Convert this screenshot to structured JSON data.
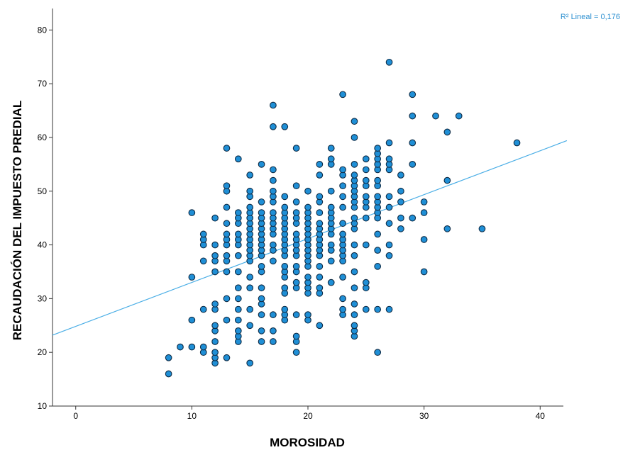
{
  "chart_data": {
    "type": "scatter",
    "title": "",
    "xlabel": "MOROSIDAD",
    "ylabel": "RECAUDACIÓN DEL IMPUESTO PREDIAL",
    "xlim": [
      -2,
      42
    ],
    "ylim": [
      10,
      84
    ],
    "xticks": [
      0,
      10,
      20,
      30,
      40
    ],
    "yticks": [
      10,
      20,
      30,
      40,
      50,
      60,
      70,
      80
    ],
    "grid": false,
    "colors": {
      "point_fill": "#1f8fd6",
      "point_edge": "#0d2a44",
      "fit_line": "#4aaee6",
      "axis": "#333333"
    },
    "fit_line": {
      "label": "R² Lineal = 0,176",
      "x": [
        -2,
        42.3
      ],
      "y": [
        23.2,
        59.4
      ]
    },
    "series": [
      {
        "points": [
          [
            8,
            16
          ],
          [
            8,
            19
          ],
          [
            9,
            21
          ],
          [
            10,
            21
          ],
          [
            10,
            26
          ],
          [
            10,
            34
          ],
          [
            10,
            46
          ],
          [
            11,
            20
          ],
          [
            11,
            21
          ],
          [
            11,
            28
          ],
          [
            11,
            37
          ],
          [
            11,
            40
          ],
          [
            11,
            41
          ],
          [
            11,
            42
          ],
          [
            12,
            18
          ],
          [
            12,
            19
          ],
          [
            12,
            20
          ],
          [
            12,
            22
          ],
          [
            12,
            24
          ],
          [
            12,
            25
          ],
          [
            12,
            28
          ],
          [
            12,
            29
          ],
          [
            12,
            35
          ],
          [
            12,
            37
          ],
          [
            12,
            38
          ],
          [
            12,
            40
          ],
          [
            12,
            45
          ],
          [
            13,
            19
          ],
          [
            13,
            26
          ],
          [
            13,
            30
          ],
          [
            13,
            35
          ],
          [
            13,
            37
          ],
          [
            13,
            38
          ],
          [
            13,
            40
          ],
          [
            13,
            41
          ],
          [
            13,
            42
          ],
          [
            13,
            44
          ],
          [
            13,
            47
          ],
          [
            13,
            50
          ],
          [
            13,
            51
          ],
          [
            13,
            58
          ],
          [
            14,
            22
          ],
          [
            14,
            23
          ],
          [
            14,
            24
          ],
          [
            14,
            26
          ],
          [
            14,
            28
          ],
          [
            14,
            30
          ],
          [
            14,
            32
          ],
          [
            14,
            35
          ],
          [
            14,
            38
          ],
          [
            14,
            40
          ],
          [
            14,
            41
          ],
          [
            14,
            42
          ],
          [
            14,
            44
          ],
          [
            14,
            45
          ],
          [
            14,
            46
          ],
          [
            14,
            56
          ],
          [
            15,
            18
          ],
          [
            15,
            25
          ],
          [
            15,
            28
          ],
          [
            15,
            32
          ],
          [
            15,
            34
          ],
          [
            15,
            37
          ],
          [
            15,
            38
          ],
          [
            15,
            39
          ],
          [
            15,
            40
          ],
          [
            15,
            41
          ],
          [
            15,
            42
          ],
          [
            15,
            43
          ],
          [
            15,
            44
          ],
          [
            15,
            45
          ],
          [
            15,
            46
          ],
          [
            15,
            47
          ],
          [
            15,
            49
          ],
          [
            15,
            50
          ],
          [
            15,
            53
          ],
          [
            16,
            22
          ],
          [
            16,
            24
          ],
          [
            16,
            27
          ],
          [
            16,
            29
          ],
          [
            16,
            30
          ],
          [
            16,
            32
          ],
          [
            16,
            35
          ],
          [
            16,
            36
          ],
          [
            16,
            38
          ],
          [
            16,
            39
          ],
          [
            16,
            40
          ],
          [
            16,
            41
          ],
          [
            16,
            42
          ],
          [
            16,
            43
          ],
          [
            16,
            44
          ],
          [
            16,
            45
          ],
          [
            16,
            46
          ],
          [
            16,
            48
          ],
          [
            16,
            55
          ],
          [
            17,
            22
          ],
          [
            17,
            24
          ],
          [
            17,
            27
          ],
          [
            17,
            37
          ],
          [
            17,
            39
          ],
          [
            17,
            40
          ],
          [
            17,
            42
          ],
          [
            17,
            43
          ],
          [
            17,
            44
          ],
          [
            17,
            45
          ],
          [
            17,
            46
          ],
          [
            17,
            48
          ],
          [
            17,
            49
          ],
          [
            17,
            50
          ],
          [
            17,
            52
          ],
          [
            17,
            54
          ],
          [
            17,
            62
          ],
          [
            17,
            66
          ],
          [
            18,
            26
          ],
          [
            18,
            27
          ],
          [
            18,
            28
          ],
          [
            18,
            31
          ],
          [
            18,
            32
          ],
          [
            18,
            34
          ],
          [
            18,
            35
          ],
          [
            18,
            36
          ],
          [
            18,
            38
          ],
          [
            18,
            39
          ],
          [
            18,
            40
          ],
          [
            18,
            41
          ],
          [
            18,
            42
          ],
          [
            18,
            43
          ],
          [
            18,
            44
          ],
          [
            18,
            45
          ],
          [
            18,
            46
          ],
          [
            18,
            47
          ],
          [
            18,
            49
          ],
          [
            18,
            62
          ],
          [
            19,
            20
          ],
          [
            19,
            22
          ],
          [
            19,
            23
          ],
          [
            19,
            27
          ],
          [
            19,
            32
          ],
          [
            19,
            33
          ],
          [
            19,
            35
          ],
          [
            19,
            36
          ],
          [
            19,
            38
          ],
          [
            19,
            39
          ],
          [
            19,
            40
          ],
          [
            19,
            41
          ],
          [
            19,
            42
          ],
          [
            19,
            44
          ],
          [
            19,
            45
          ],
          [
            19,
            46
          ],
          [
            19,
            48
          ],
          [
            19,
            51
          ],
          [
            19,
            58
          ],
          [
            20,
            26
          ],
          [
            20,
            27
          ],
          [
            20,
            31
          ],
          [
            20,
            32
          ],
          [
            20,
            33
          ],
          [
            20,
            34
          ],
          [
            20,
            36
          ],
          [
            20,
            37
          ],
          [
            20,
            38
          ],
          [
            20,
            39
          ],
          [
            20,
            40
          ],
          [
            20,
            41
          ],
          [
            20,
            42
          ],
          [
            20,
            43
          ],
          [
            20,
            44
          ],
          [
            20,
            45
          ],
          [
            20,
            46
          ],
          [
            20,
            47
          ],
          [
            20,
            50
          ],
          [
            21,
            25
          ],
          [
            21,
            31
          ],
          [
            21,
            32
          ],
          [
            21,
            34
          ],
          [
            21,
            36
          ],
          [
            21,
            38
          ],
          [
            21,
            39
          ],
          [
            21,
            40
          ],
          [
            21,
            41
          ],
          [
            21,
            42
          ],
          [
            21,
            43
          ],
          [
            21,
            44
          ],
          [
            21,
            46
          ],
          [
            21,
            48
          ],
          [
            21,
            49
          ],
          [
            21,
            53
          ],
          [
            21,
            55
          ],
          [
            22,
            33
          ],
          [
            22,
            37
          ],
          [
            22,
            39
          ],
          [
            22,
            40
          ],
          [
            22,
            42
          ],
          [
            22,
            43
          ],
          [
            22,
            44
          ],
          [
            22,
            45
          ],
          [
            22,
            46
          ],
          [
            22,
            47
          ],
          [
            22,
            50
          ],
          [
            22,
            55
          ],
          [
            22,
            56
          ],
          [
            22,
            58
          ],
          [
            23,
            27
          ],
          [
            23,
            28
          ],
          [
            23,
            30
          ],
          [
            23,
            34
          ],
          [
            23,
            37
          ],
          [
            23,
            38
          ],
          [
            23,
            39
          ],
          [
            23,
            40
          ],
          [
            23,
            41
          ],
          [
            23,
            42
          ],
          [
            23,
            44
          ],
          [
            23,
            47
          ],
          [
            23,
            49
          ],
          [
            23,
            51
          ],
          [
            23,
            53
          ],
          [
            23,
            54
          ],
          [
            23,
            68
          ],
          [
            24,
            23
          ],
          [
            24,
            24
          ],
          [
            24,
            25
          ],
          [
            24,
            27
          ],
          [
            24,
            29
          ],
          [
            24,
            32
          ],
          [
            24,
            35
          ],
          [
            24,
            38
          ],
          [
            24,
            40
          ],
          [
            24,
            43
          ],
          [
            24,
            44
          ],
          [
            24,
            45
          ],
          [
            24,
            47
          ],
          [
            24,
            48
          ],
          [
            24,
            49
          ],
          [
            24,
            50
          ],
          [
            24,
            51
          ],
          [
            24,
            52
          ],
          [
            24,
            53
          ],
          [
            24,
            55
          ],
          [
            24,
            60
          ],
          [
            24,
            63
          ],
          [
            25,
            28
          ],
          [
            25,
            32
          ],
          [
            25,
            33
          ],
          [
            25,
            40
          ],
          [
            25,
            45
          ],
          [
            25,
            47
          ],
          [
            25,
            48
          ],
          [
            25,
            49
          ],
          [
            25,
            51
          ],
          [
            25,
            52
          ],
          [
            25,
            54
          ],
          [
            25,
            56
          ],
          [
            26,
            20
          ],
          [
            26,
            28
          ],
          [
            26,
            36
          ],
          [
            26,
            39
          ],
          [
            26,
            42
          ],
          [
            26,
            45
          ],
          [
            26,
            46
          ],
          [
            26,
            47
          ],
          [
            26,
            48
          ],
          [
            26,
            49
          ],
          [
            26,
            51
          ],
          [
            26,
            52
          ],
          [
            26,
            54
          ],
          [
            26,
            55
          ],
          [
            26,
            56
          ],
          [
            26,
            57
          ],
          [
            26,
            58
          ],
          [
            27,
            28
          ],
          [
            27,
            38
          ],
          [
            27,
            40
          ],
          [
            27,
            44
          ],
          [
            27,
            47
          ],
          [
            27,
            49
          ],
          [
            27,
            54
          ],
          [
            27,
            55
          ],
          [
            27,
            56
          ],
          [
            27,
            59
          ],
          [
            27,
            74
          ],
          [
            28,
            43
          ],
          [
            28,
            45
          ],
          [
            28,
            48
          ],
          [
            28,
            50
          ],
          [
            28,
            53
          ],
          [
            29,
            45
          ],
          [
            29,
            55
          ],
          [
            29,
            59
          ],
          [
            29,
            64
          ],
          [
            29,
            68
          ],
          [
            30,
            35
          ],
          [
            30,
            41
          ],
          [
            30,
            46
          ],
          [
            30,
            48
          ],
          [
            31,
            64
          ],
          [
            32,
            43
          ],
          [
            32,
            52
          ],
          [
            32,
            61
          ],
          [
            33,
            64
          ],
          [
            35,
            43
          ],
          [
            38,
            59
          ]
        ]
      }
    ]
  }
}
